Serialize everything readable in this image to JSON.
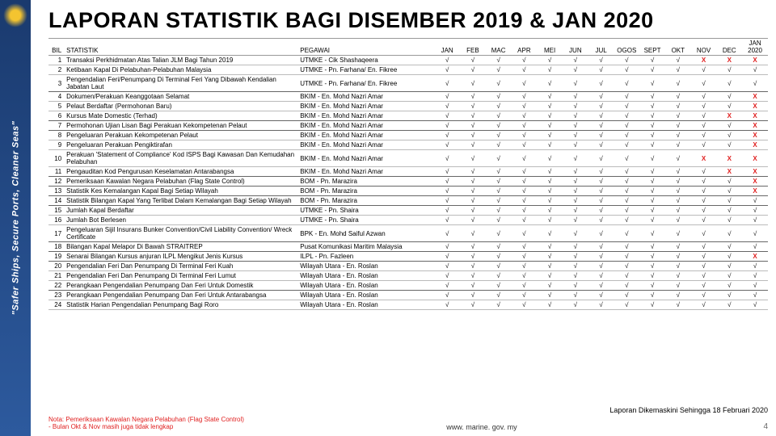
{
  "banner_text": "\"Safer Ships, Secure Ports, Cleaner Seas\"",
  "title": "LAPORAN STATISTIK BAGI DISEMBER 2019 & JAN 2020",
  "headers": {
    "bil": "BIL",
    "statistik": "STATISTIK",
    "pegawai": "PEGAWAI",
    "months": [
      "JAN",
      "FEB",
      "MAC",
      "APR",
      "MEI",
      "JUN",
      "JUL",
      "OGOS",
      "SEPT",
      "OKT",
      "NOV",
      "DEC",
      "JAN 2020"
    ]
  },
  "tick_char": "√",
  "miss_char": "X",
  "rows": [
    {
      "n": "1",
      "stat": "Transaksi Perkhidmatan Atas Talian JLM Bagi Tahun 2019",
      "peg": "UTMKE - Cik Shashaqeera",
      "v": [
        1,
        1,
        1,
        1,
        1,
        1,
        1,
        1,
        1,
        1,
        0,
        0,
        0
      ]
    },
    {
      "n": "2",
      "stat": "Ketibaan Kapal Di Pelabuhan-Pelabuhan Malaysia",
      "peg": "UTMKE - Pn. Farhana/ En. Fikree",
      "v": [
        1,
        1,
        1,
        1,
        1,
        1,
        1,
        1,
        1,
        1,
        1,
        1,
        1
      ]
    },
    {
      "n": "3",
      "stat": "Pengendalian Feri/Penumpang Di Terminal Feri Yang Dibawah Kendalian Jabatan Laut",
      "peg": "UTMKE - Pn. Farhana/ En. Fikree",
      "v": [
        1,
        1,
        1,
        1,
        1,
        1,
        1,
        1,
        1,
        1,
        1,
        1,
        1
      ]
    },
    {
      "n": "4",
      "stat": "Dokumen/Perakuan Keanggotaan Selamat",
      "peg": "BKIM - En. Mohd Nazri Amar",
      "v": [
        1,
        1,
        1,
        1,
        1,
        1,
        1,
        1,
        1,
        1,
        1,
        1,
        0
      ]
    },
    {
      "n": "5",
      "stat": "Pelaut Berdaftar (Permohonan Baru)",
      "peg": "BKIM - En. Mohd Nazri Amar",
      "v": [
        1,
        1,
        1,
        1,
        1,
        1,
        1,
        1,
        1,
        1,
        1,
        1,
        0
      ]
    },
    {
      "n": "6",
      "stat": "Kursus Mate Domestic (Terhad)",
      "peg": "BKIM - En. Mohd Nazri Amar",
      "v": [
        1,
        1,
        1,
        1,
        1,
        1,
        1,
        1,
        1,
        1,
        1,
        0,
        0
      ]
    },
    {
      "n": "7",
      "stat": "Permohonan Ujian Lisan Bagi Perakuan Kekompetenan Pelaut",
      "peg": "BKIM - En. Mohd Nazri Amar",
      "v": [
        1,
        1,
        1,
        1,
        1,
        1,
        1,
        1,
        1,
        1,
        1,
        1,
        0
      ]
    },
    {
      "n": "8",
      "stat": "Pengeluaran Perakuan Kekompetenan Pelaut",
      "peg": "BKIM - En. Mohd Nazri Amar",
      "v": [
        1,
        1,
        1,
        1,
        1,
        1,
        1,
        1,
        1,
        1,
        1,
        1,
        0
      ]
    },
    {
      "n": "9",
      "stat": "Pengeluaran Perakuan Pengiktirafan",
      "peg": "BKIM - En. Mohd Nazri Amar",
      "v": [
        1,
        1,
        1,
        1,
        1,
        1,
        1,
        1,
        1,
        1,
        1,
        1,
        0
      ]
    },
    {
      "n": "10",
      "stat": "Perakuan 'Statement of Compliance' Kod ISPS Bagi Kawasan Dan Kemudahan Pelabuhan",
      "peg": "BKIM - En. Mohd Nazri Amar",
      "v": [
        1,
        1,
        1,
        1,
        1,
        1,
        1,
        1,
        1,
        1,
        0,
        0,
        0
      ]
    },
    {
      "n": "11",
      "stat": "Pengauditan Kod Pengurusan Keselamatan Antarabangsa",
      "peg": "BKIM - En. Mohd Nazri Amar",
      "v": [
        1,
        1,
        1,
        1,
        1,
        1,
        1,
        1,
        1,
        1,
        1,
        0,
        0
      ]
    },
    {
      "n": "12",
      "stat": "Pemeriksaan Kawalan Negara Pelabuhan (Flag State Control)",
      "peg": "BOM - Pn. Marazira",
      "v": [
        1,
        1,
        1,
        1,
        1,
        1,
        1,
        1,
        1,
        1,
        1,
        1,
        0
      ]
    },
    {
      "n": "13",
      "stat": "Statistik Kes Kemalangan Kapal Bagi Setiap Wilayah",
      "peg": "BOM - Pn. Marazira",
      "v": [
        1,
        1,
        1,
        1,
        1,
        1,
        1,
        1,
        1,
        1,
        1,
        1,
        0
      ]
    },
    {
      "n": "14",
      "stat": "Statistik Bilangan Kapal Yang Terlibat Dalam Kemalangan Bagi Setiap Wilayah",
      "peg": "BOM - Pn. Marazira",
      "v": [
        1,
        1,
        1,
        1,
        1,
        1,
        1,
        1,
        1,
        1,
        1,
        1,
        1
      ]
    },
    {
      "n": "15",
      "stat": "Jumlah Kapal Berdaftar",
      "peg": "UTMKE - Pn. Shaira",
      "v": [
        1,
        1,
        1,
        1,
        1,
        1,
        1,
        1,
        1,
        1,
        1,
        1,
        1
      ]
    },
    {
      "n": "16",
      "stat": "Jumlah Bot Berlesen",
      "peg": "UTMKE - Pn. Shaira",
      "v": [
        1,
        1,
        1,
        1,
        1,
        1,
        1,
        1,
        1,
        1,
        1,
        1,
        1
      ]
    },
    {
      "n": "17",
      "stat": "Pengeluaran Sijil Insurans Bunker Convention/Civil Liability Convention/ Wreck Certificate",
      "peg": "BPK - En. Mohd Saiful Azwan",
      "v": [
        1,
        1,
        1,
        1,
        1,
        1,
        1,
        1,
        1,
        1,
        1,
        1,
        1
      ]
    },
    {
      "n": "18",
      "stat": "Bilangan Kapal Melapor Di Bawah STRAITREP",
      "peg": "Pusat Komunikasi Maritim Malaysia",
      "v": [
        1,
        1,
        1,
        1,
        1,
        1,
        1,
        1,
        1,
        1,
        1,
        1,
        1
      ]
    },
    {
      "n": "19",
      "stat": "Senarai Bilangan Kursus anjuran ILPL Mengikut Jenis Kursus",
      "peg": "ILPL - Pn. Fazleen",
      "v": [
        1,
        1,
        1,
        1,
        1,
        1,
        1,
        1,
        1,
        1,
        1,
        1,
        0
      ]
    },
    {
      "n": "20",
      "stat": "Pengendalian Feri Dan Penumpang Di Terminal Feri Kuah",
      "peg": "Wilayah Utara - En. Roslan",
      "v": [
        1,
        1,
        1,
        1,
        1,
        1,
        1,
        1,
        1,
        1,
        1,
        1,
        1
      ]
    },
    {
      "n": "21",
      "stat": "Pengendalian Feri Dan Penumpang Di Terminal Feri Lumut",
      "peg": "Wilayah Utara - En. Roslan",
      "v": [
        1,
        1,
        1,
        1,
        1,
        1,
        1,
        1,
        1,
        1,
        1,
        1,
        1
      ]
    },
    {
      "n": "22",
      "stat": "Perangkaan Pengendalian Penumpang Dan Feri Untuk Domestik",
      "peg": "Wilayah Utara - En. Roslan",
      "v": [
        1,
        1,
        1,
        1,
        1,
        1,
        1,
        1,
        1,
        1,
        1,
        1,
        1
      ]
    },
    {
      "n": "23",
      "stat": "Perangkaan Pengendalian Penumpang Dan Feri Untuk Antarabangsa",
      "peg": "Wilayah Utara - En. Roslan",
      "v": [
        1,
        1,
        1,
        1,
        1,
        1,
        1,
        1,
        1,
        1,
        1,
        1,
        1
      ]
    },
    {
      "n": "24",
      "stat": "Statistik Harian Pengendalian Penumpang Bagi Roro",
      "peg": "Wilayah Utara - En. Roslan",
      "v": [
        1,
        1,
        1,
        1,
        1,
        1,
        1,
        1,
        1,
        1,
        1,
        1,
        1
      ]
    }
  ],
  "update_note": "Laporan Dikemaskini Sehingga 18 Februari 2020",
  "nota_line1": "Nota: Pemeriksaan Kawalan Negara Pelabuhan (Flag State Control)",
  "nota_line2": "- Bulan Okt & Nov masih juga tidak lengkap",
  "site": "www. marine. gov. my",
  "pagenum": "4",
  "colors": {
    "miss": "#e02020",
    "tick": "#000000",
    "banner": "#1a3a6e"
  }
}
